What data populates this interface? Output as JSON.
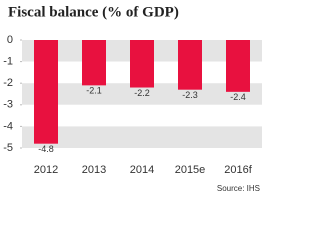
{
  "chart_data": {
    "type": "bar",
    "title": "Fiscal balance (% of GDP)",
    "categories": [
      "2012",
      "2013",
      "2014",
      "2015e",
      "2016f"
    ],
    "values": [
      -4.8,
      -2.1,
      -2.2,
      -2.3,
      -2.4
    ],
    "color": "#e8113f",
    "ylim": [
      0,
      -5
    ],
    "yticks": [
      0,
      -1,
      -2,
      -3,
      -4,
      -5
    ],
    "grid": true,
    "source": "Source: IHS"
  }
}
